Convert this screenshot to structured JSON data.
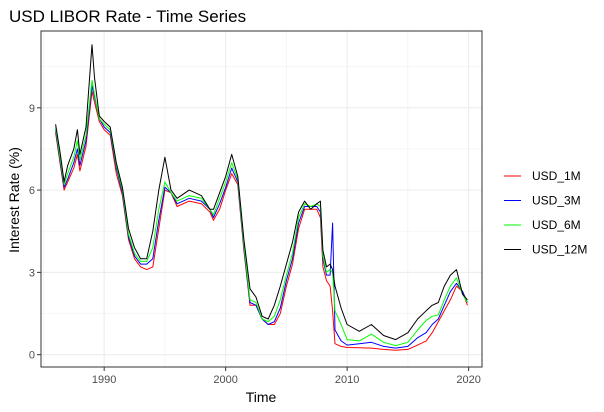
{
  "chart_data": {
    "type": "line",
    "title": "USD LIBOR Rate - Time Series",
    "xlabel": "Time",
    "ylabel": "Interest Rate (%)",
    "xlim": [
      1984.8,
      2021.1
    ],
    "ylim": [
      -0.45,
      11.8
    ],
    "x_ticks": [
      1990,
      2000,
      2010,
      2020
    ],
    "x_tick_labels": [
      "1990",
      "2000",
      "2010",
      "2020"
    ],
    "y_ticks": [
      0,
      3,
      6,
      9
    ],
    "y_tick_labels": [
      "0",
      "3",
      "6",
      "9"
    ],
    "grid": true,
    "legend_position": "right",
    "series": [
      {
        "name": "USD_1M",
        "color": "#ff0000",
        "x": [
          1986.0,
          1986.4,
          1986.7,
          1987.0,
          1987.5,
          1987.8,
          1988.0,
          1988.5,
          1989.0,
          1989.2,
          1989.6,
          1990.0,
          1990.5,
          1991.0,
          1991.5,
          1992.0,
          1992.5,
          1993.0,
          1993.5,
          1994.0,
          1994.5,
          1995.0,
          1995.5,
          1996.0,
          1997.0,
          1998.0,
          1998.7,
          1999.0,
          1999.5,
          2000.0,
          2000.5,
          2001.0,
          2001.5,
          2002.0,
          2002.5,
          2003.0,
          2003.5,
          2004.0,
          2004.5,
          2005.0,
          2005.5,
          2006.0,
          2006.5,
          2007.0,
          2007.5,
          2007.8,
          2008.0,
          2008.3,
          2008.6,
          2008.8,
          2009.0,
          2009.5,
          2010.0,
          2011.0,
          2012.0,
          2013.0,
          2014.0,
          2015.0,
          2015.8,
          2016.5,
          2017.0,
          2017.5,
          2018.0,
          2018.5,
          2019.0,
          2019.5,
          2019.9
        ],
        "y": [
          8.1,
          6.9,
          6.0,
          6.3,
          6.8,
          7.3,
          6.7,
          7.6,
          9.6,
          9.2,
          8.5,
          8.2,
          8.0,
          6.6,
          5.8,
          4.2,
          3.5,
          3.2,
          3.1,
          3.2,
          4.6,
          6.0,
          5.9,
          5.4,
          5.6,
          5.5,
          5.2,
          4.9,
          5.3,
          6.0,
          6.6,
          6.2,
          3.8,
          1.8,
          1.8,
          1.3,
          1.1,
          1.1,
          1.5,
          2.5,
          3.3,
          4.6,
          5.3,
          5.3,
          5.3,
          5.0,
          3.2,
          2.7,
          2.5,
          1.6,
          0.4,
          0.3,
          0.26,
          0.25,
          0.24,
          0.19,
          0.16,
          0.19,
          0.35,
          0.5,
          0.8,
          1.2,
          1.6,
          2.0,
          2.5,
          2.3,
          1.8
        ]
      },
      {
        "name": "USD_3M",
        "color": "#0000ff",
        "x": [
          1986.0,
          1986.4,
          1986.7,
          1987.0,
          1987.5,
          1987.8,
          1988.0,
          1988.5,
          1989.0,
          1989.2,
          1989.6,
          1990.0,
          1990.5,
          1991.0,
          1991.5,
          1992.0,
          1992.5,
          1993.0,
          1993.5,
          1994.0,
          1994.5,
          1995.0,
          1995.5,
          1996.0,
          1997.0,
          1998.0,
          1998.7,
          1999.0,
          1999.5,
          2000.0,
          2000.5,
          2001.0,
          2001.5,
          2002.0,
          2002.5,
          2003.0,
          2003.5,
          2004.0,
          2004.5,
          2005.0,
          2005.5,
          2006.0,
          2006.5,
          2007.0,
          2007.5,
          2007.8,
          2008.0,
          2008.3,
          2008.6,
          2008.8,
          2009.0,
          2009.5,
          2010.0,
          2011.0,
          2012.0,
          2013.0,
          2014.0,
          2015.0,
          2015.8,
          2016.5,
          2017.0,
          2017.5,
          2018.0,
          2018.5,
          2019.0,
          2019.5,
          2019.9
        ],
        "y": [
          8.2,
          7.0,
          6.1,
          6.4,
          7.0,
          7.5,
          6.9,
          7.8,
          9.8,
          9.4,
          8.6,
          8.3,
          8.1,
          6.8,
          5.9,
          4.3,
          3.6,
          3.3,
          3.3,
          3.5,
          4.9,
          6.1,
          5.9,
          5.5,
          5.7,
          5.6,
          5.3,
          5.0,
          5.5,
          6.1,
          6.8,
          6.3,
          3.9,
          1.9,
          1.8,
          1.3,
          1.1,
          1.2,
          1.7,
          2.7,
          3.5,
          4.8,
          5.4,
          5.4,
          5.4,
          5.2,
          3.5,
          2.9,
          2.9,
          4.8,
          0.9,
          0.5,
          0.35,
          0.4,
          0.45,
          0.3,
          0.24,
          0.3,
          0.62,
          0.8,
          1.1,
          1.3,
          1.8,
          2.3,
          2.6,
          2.3,
          1.9
        ]
      },
      {
        "name": "USD_6M",
        "color": "#00ff00",
        "x": [
          1986.0,
          1986.4,
          1986.7,
          1987.0,
          1987.5,
          1987.8,
          1988.0,
          1988.5,
          1989.0,
          1989.2,
          1989.6,
          1990.0,
          1990.5,
          1991.0,
          1991.5,
          1992.0,
          1992.5,
          1993.0,
          1993.5,
          1994.0,
          1994.5,
          1995.0,
          1995.5,
          1996.0,
          1997.0,
          1998.0,
          1998.7,
          1999.0,
          1999.5,
          2000.0,
          2000.5,
          2001.0,
          2001.5,
          2002.0,
          2002.5,
          2003.0,
          2003.5,
          2004.0,
          2004.5,
          2005.0,
          2005.5,
          2006.0,
          2006.5,
          2007.0,
          2007.5,
          2007.8,
          2008.0,
          2008.3,
          2008.6,
          2008.8,
          2009.0,
          2009.5,
          2010.0,
          2011.0,
          2012.0,
          2013.0,
          2014.0,
          2015.0,
          2015.8,
          2016.5,
          2017.0,
          2017.5,
          2018.0,
          2018.5,
          2019.0,
          2019.5,
          2019.9
        ],
        "y": [
          8.3,
          7.1,
          6.2,
          6.6,
          7.2,
          7.8,
          7.1,
          8.0,
          10.0,
          9.5,
          8.6,
          8.4,
          8.2,
          6.9,
          6.0,
          4.4,
          3.7,
          3.4,
          3.4,
          3.9,
          5.3,
          6.3,
          5.9,
          5.6,
          5.8,
          5.7,
          5.3,
          5.1,
          5.7,
          6.3,
          7.0,
          6.4,
          4.0,
          2.0,
          1.9,
          1.3,
          1.2,
          1.4,
          2.0,
          2.9,
          3.7,
          5.0,
          5.5,
          5.4,
          5.5,
          5.4,
          3.6,
          3.0,
          3.1,
          3.0,
          1.6,
          1.1,
          0.55,
          0.5,
          0.75,
          0.45,
          0.33,
          0.45,
          0.9,
          1.25,
          1.4,
          1.45,
          2.0,
          2.5,
          2.8,
          2.2,
          1.9
        ]
      },
      {
        "name": "USD_12M",
        "color": "#000000",
        "x": [
          1986.0,
          1986.4,
          1986.7,
          1987.0,
          1987.5,
          1987.8,
          1988.0,
          1988.5,
          1989.0,
          1989.2,
          1989.6,
          1990.0,
          1990.5,
          1991.0,
          1991.5,
          1992.0,
          1992.5,
          1993.0,
          1993.5,
          1994.0,
          1994.5,
          1995.0,
          1995.5,
          1996.0,
          1997.0,
          1998.0,
          1998.7,
          1999.0,
          1999.5,
          2000.0,
          2000.5,
          2001.0,
          2001.5,
          2002.0,
          2002.5,
          2003.0,
          2003.5,
          2004.0,
          2004.5,
          2005.0,
          2005.5,
          2006.0,
          2006.5,
          2007.0,
          2007.5,
          2007.8,
          2008.0,
          2008.3,
          2008.6,
          2008.8,
          2009.0,
          2009.5,
          2010.0,
          2011.0,
          2012.0,
          2013.0,
          2014.0,
          2015.0,
          2015.8,
          2016.5,
          2017.0,
          2017.5,
          2018.0,
          2018.5,
          2019.0,
          2019.5,
          2019.9
        ],
        "y": [
          8.4,
          7.3,
          6.3,
          6.9,
          7.5,
          8.2,
          7.3,
          8.3,
          11.3,
          10.1,
          8.7,
          8.5,
          8.3,
          7.0,
          6.1,
          4.6,
          3.9,
          3.5,
          3.5,
          4.5,
          6.0,
          7.2,
          6.0,
          5.7,
          6.0,
          5.8,
          5.3,
          5.3,
          5.9,
          6.5,
          7.3,
          6.5,
          4.2,
          2.4,
          2.1,
          1.4,
          1.3,
          1.8,
          2.5,
          3.3,
          4.1,
          5.2,
          5.6,
          5.3,
          5.5,
          5.6,
          3.8,
          3.2,
          3.3,
          3.1,
          2.5,
          1.7,
          1.1,
          0.85,
          1.1,
          0.7,
          0.55,
          0.8,
          1.3,
          1.6,
          1.8,
          1.9,
          2.5,
          2.9,
          3.1,
          2.2,
          2.0
        ]
      }
    ]
  }
}
